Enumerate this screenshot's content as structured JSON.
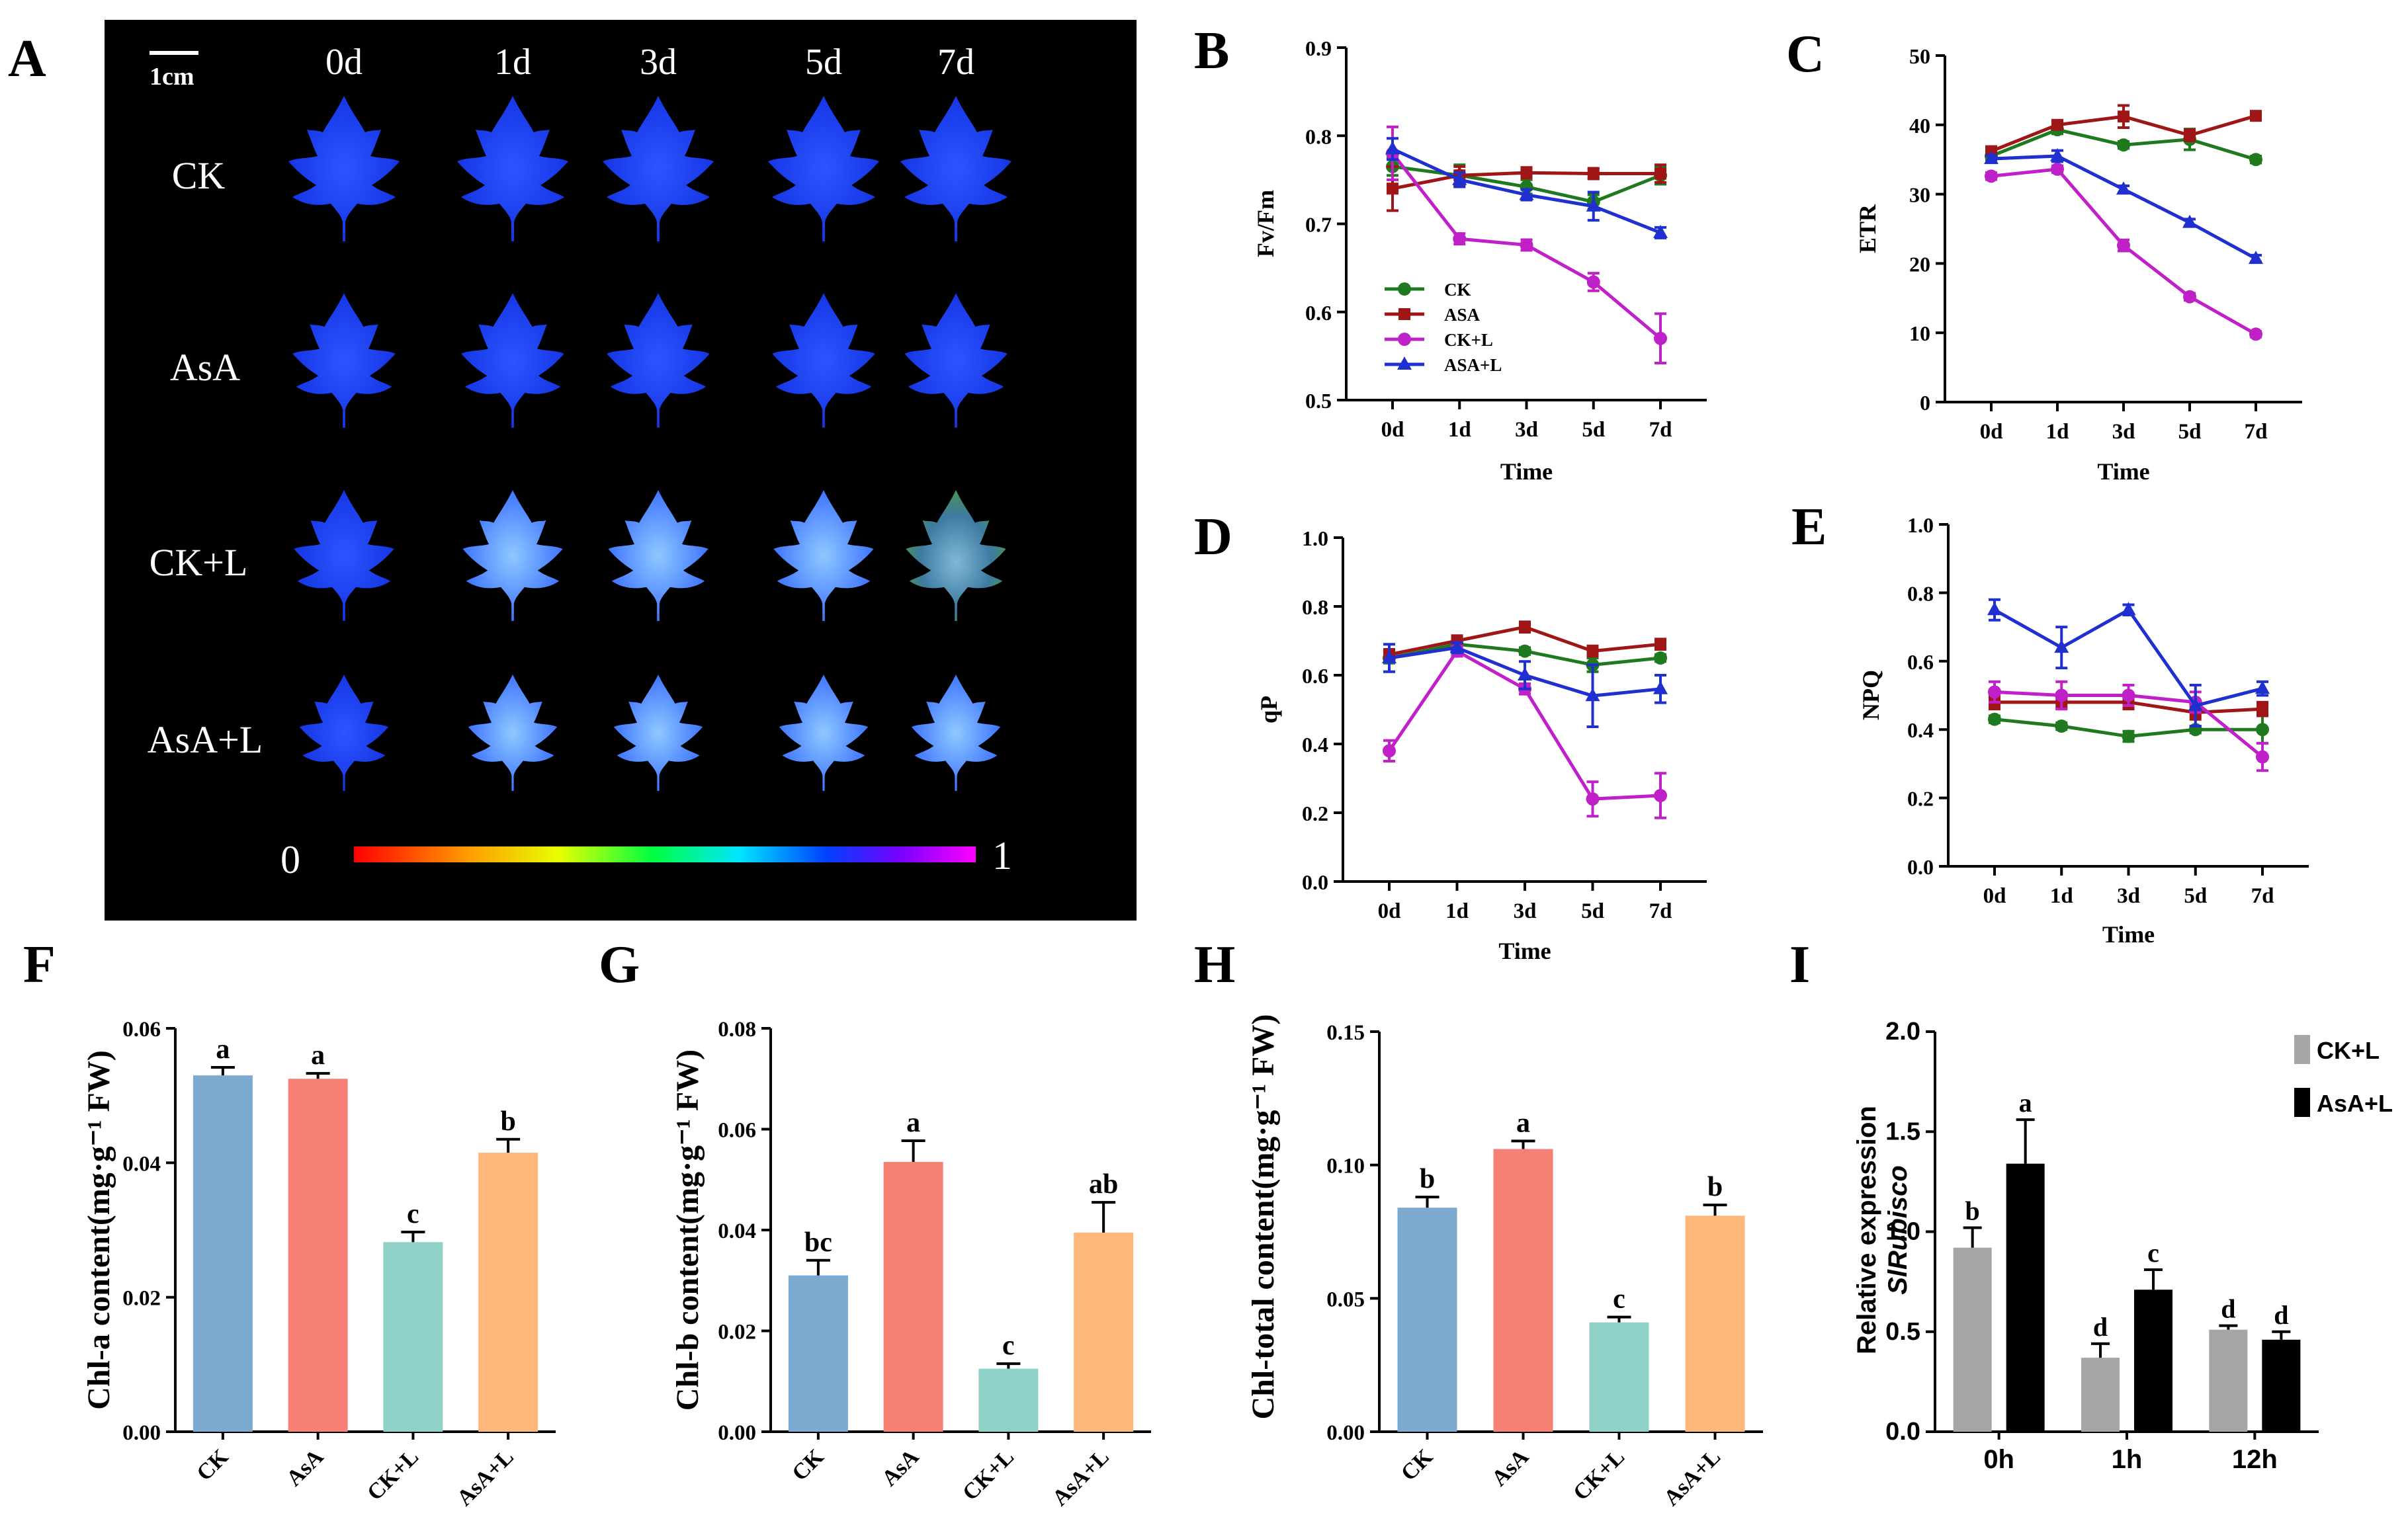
{
  "panel_labels": [
    "A",
    "B",
    "C",
    "D",
    "E",
    "F",
    "G",
    "H",
    "I"
  ],
  "photo": {
    "scale_bar": "1cm",
    "days": [
      "0d",
      "1d",
      "3d",
      "5d",
      "7d"
    ],
    "rows": [
      "CK",
      "AsA",
      "CK+L",
      "AsA+L"
    ],
    "colorbar_min": "0",
    "colorbar_max": "1",
    "colors": {
      "leaf_healthy": "#1a3cff",
      "leaf_light": "#3f86ff",
      "background": "#000000"
    }
  },
  "chart_data": [
    {
      "id": "B",
      "type": "line",
      "title": "",
      "xlabel": "Time",
      "ylabel": "Fv/Fm",
      "categories": [
        "0d",
        "1d",
        "3d",
        "5d",
        "7d"
      ],
      "ylim": [
        0.5,
        0.9
      ],
      "yticks": [
        "0.5",
        "0.6",
        "0.7",
        "0.8",
        "0.9"
      ],
      "legend_position": "lower-left",
      "series": [
        {
          "name": "CK",
          "color": "#1f7a1f",
          "marker": "circle",
          "values": [
            0.765,
            0.755,
            0.742,
            0.725,
            0.755
          ],
          "err": [
            0.01,
            0.012,
            0.008,
            0.008,
            0.01
          ]
        },
        {
          "name": "ASA",
          "color": "#a01515",
          "marker": "square",
          "values": [
            0.74,
            0.755,
            0.758,
            0.757,
            0.757
          ],
          "err": [
            0.025,
            0.01,
            0.006,
            0.006,
            0.01
          ]
        },
        {
          "name": "CK+L",
          "color": "#c020c8",
          "marker": "circle",
          "values": [
            0.78,
            0.683,
            0.676,
            0.634,
            0.57
          ],
          "err": [
            0.03,
            0.006,
            0.006,
            0.01,
            0.028
          ]
        },
        {
          "name": "ASA+L",
          "color": "#1f2fd0",
          "marker": "triangle",
          "values": [
            0.785,
            0.75,
            0.733,
            0.72,
            0.69
          ],
          "err": [
            0.012,
            0.008,
            0.006,
            0.016,
            0.006
          ]
        }
      ]
    },
    {
      "id": "C",
      "type": "line",
      "title": "",
      "xlabel": "Time",
      "ylabel": "ETR",
      "categories": [
        "0d",
        "1d",
        "3d",
        "5d",
        "7d"
      ],
      "ylim": [
        0,
        50
      ],
      "yticks": [
        "0",
        "10",
        "20",
        "30",
        "40",
        "50"
      ],
      "series": [
        {
          "name": "CK",
          "color": "#1f7a1f",
          "marker": "circle",
          "values": [
            35.5,
            39.3,
            37.1,
            37.9,
            35.0
          ],
          "err": [
            0.5,
            0.6,
            0.5,
            1.5,
            0.5
          ]
        },
        {
          "name": "ASA",
          "color": "#a01515",
          "marker": "square",
          "values": [
            36.2,
            40.0,
            41.2,
            38.5,
            41.3
          ],
          "err": [
            0.5,
            0.6,
            1.6,
            0.8,
            0.5
          ]
        },
        {
          "name": "CK+L",
          "color": "#c020c8",
          "marker": "circle",
          "values": [
            32.6,
            33.6,
            22.6,
            15.2,
            9.8
          ],
          "err": [
            0.5,
            0.5,
            0.8,
            0.5,
            0.4
          ]
        },
        {
          "name": "ASA+L",
          "color": "#1f2fd0",
          "marker": "triangle",
          "values": [
            35.1,
            35.5,
            30.7,
            25.9,
            20.7
          ],
          "err": [
            0.5,
            0.8,
            0.5,
            0.5,
            0.5
          ]
        }
      ]
    },
    {
      "id": "D",
      "type": "line",
      "title": "",
      "xlabel": "Time",
      "ylabel": "qP",
      "categories": [
        "0d",
        "1d",
        "3d",
        "5d",
        "7d"
      ],
      "ylim": [
        0,
        1.0
      ],
      "yticks": [
        "0.0",
        "0.2",
        "0.4",
        "0.6",
        "0.8",
        "1.0"
      ],
      "series": [
        {
          "name": "CK",
          "color": "#1f7a1f",
          "marker": "circle",
          "values": [
            0.65,
            0.69,
            0.67,
            0.63,
            0.65
          ],
          "err": [
            0.015,
            0.01,
            0.01,
            0.02,
            0.01
          ]
        },
        {
          "name": "ASA",
          "color": "#a01515",
          "marker": "square",
          "values": [
            0.66,
            0.7,
            0.74,
            0.67,
            0.69
          ],
          "err": [
            0.015,
            0.015,
            0.015,
            0.015,
            0.015
          ]
        },
        {
          "name": "CK+L",
          "color": "#c020c8",
          "marker": "circle",
          "values": [
            0.38,
            0.67,
            0.56,
            0.24,
            0.25
          ],
          "err": [
            0.03,
            0.015,
            0.015,
            0.05,
            0.065
          ]
        },
        {
          "name": "ASA+L",
          "color": "#1f2fd0",
          "marker": "triangle",
          "values": [
            0.65,
            0.68,
            0.6,
            0.54,
            0.56
          ],
          "err": [
            0.04,
            0.015,
            0.04,
            0.09,
            0.04
          ]
        }
      ]
    },
    {
      "id": "E",
      "type": "line",
      "title": "",
      "xlabel": "Time",
      "ylabel": "NPQ",
      "categories": [
        "0d",
        "1d",
        "3d",
        "5d",
        "7d"
      ],
      "ylim": [
        0,
        1.0
      ],
      "yticks": [
        "0.0",
        "0.2",
        "0.4",
        "0.6",
        "0.8",
        "1.0"
      ],
      "series": [
        {
          "name": "CK",
          "color": "#1f7a1f",
          "marker": "circle",
          "values": [
            0.43,
            0.41,
            0.38,
            0.4,
            0.4
          ],
          "err": [
            0.01,
            0.01,
            0.015,
            0.01,
            0.04
          ]
        },
        {
          "name": "ASA",
          "color": "#a01515",
          "marker": "square",
          "values": [
            0.48,
            0.48,
            0.48,
            0.45,
            0.46
          ],
          "err": [
            0.02,
            0.02,
            0.02,
            0.02,
            0.02
          ]
        },
        {
          "name": "CK+L",
          "color": "#c020c8",
          "marker": "circle",
          "values": [
            0.51,
            0.5,
            0.5,
            0.48,
            0.32
          ],
          "err": [
            0.03,
            0.04,
            0.03,
            0.03,
            0.04
          ]
        },
        {
          "name": "ASA+L",
          "color": "#1f2fd0",
          "marker": "triangle",
          "values": [
            0.75,
            0.64,
            0.75,
            0.47,
            0.52
          ],
          "err": [
            0.03,
            0.06,
            0.015,
            0.06,
            0.02
          ]
        }
      ]
    },
    {
      "id": "F",
      "type": "bar",
      "title": "",
      "xlabel": "",
      "ylabel": "Chl-a content(mg·g⁻¹ FW)",
      "categories": [
        "CK",
        "AsA",
        "CK+L",
        "AsA+L"
      ],
      "ylim": [
        0,
        0.06
      ],
      "yticks": [
        "0.00",
        "0.02",
        "0.04",
        "0.06"
      ],
      "values": [
        0.053,
        0.0525,
        0.0282,
        0.0415
      ],
      "err": [
        0.0012,
        0.0008,
        0.0015,
        0.002
      ],
      "letters": [
        "a",
        "a",
        "c",
        "b"
      ],
      "colors": [
        "#7ba9cf",
        "#f78074",
        "#8fd1c7",
        "#fdb77a"
      ]
    },
    {
      "id": "G",
      "type": "bar",
      "title": "",
      "xlabel": "",
      "ylabel": "Chl-b content(mg·g⁻¹ FW)",
      "categories": [
        "CK",
        "AsA",
        "CK+L",
        "AsA+L"
      ],
      "ylim": [
        0,
        0.08
      ],
      "yticks": [
        "0.00",
        "0.02",
        "0.04",
        "0.06",
        "0.08"
      ],
      "values": [
        0.031,
        0.0535,
        0.0125,
        0.0395
      ],
      "err": [
        0.003,
        0.0042,
        0.001,
        0.006
      ],
      "letters": [
        "bc",
        "a",
        "c",
        "ab"
      ],
      "colors": [
        "#7ba9cf",
        "#f78074",
        "#8fd1c7",
        "#fdb77a"
      ]
    },
    {
      "id": "H",
      "type": "bar",
      "title": "",
      "xlabel": "",
      "ylabel": "Chl-total content(mg·g⁻¹ FW)",
      "categories": [
        "CK",
        "AsA",
        "CK+L",
        "AsA+L"
      ],
      "ylim": [
        0,
        0.15
      ],
      "yticks": [
        "0.00",
        "0.05",
        "0.10",
        "0.15"
      ],
      "values": [
        0.084,
        0.106,
        0.041,
        0.081
      ],
      "err": [
        0.004,
        0.003,
        0.002,
        0.004
      ],
      "letters": [
        "b",
        "a",
        "c",
        "b"
      ],
      "colors": [
        "#7ba9cf",
        "#f78074",
        "#8fd1c7",
        "#fdb77a"
      ]
    },
    {
      "id": "I",
      "type": "bar",
      "title": "",
      "xlabel": "",
      "ylabel_line1": "Relative expression",
      "ylabel_line2": "SlRubisco",
      "categories": [
        "0h",
        "1h",
        "12h"
      ],
      "ylim": [
        0,
        2.0
      ],
      "yticks": [
        "0.0",
        "0.5",
        "1.0",
        "1.5",
        "2.0"
      ],
      "legend_position": "top-right",
      "series": [
        {
          "name": "CK+L",
          "color": "#a6a6a6",
          "values": [
            0.92,
            0.37,
            0.51
          ],
          "err": [
            0.1,
            0.07,
            0.02
          ],
          "letters": [
            "b",
            "d",
            "d"
          ]
        },
        {
          "name": "AsA+L",
          "color": "#000000",
          "values": [
            1.34,
            0.71,
            0.46
          ],
          "err": [
            0.22,
            0.1,
            0.04
          ],
          "letters": [
            "a",
            "c",
            "d"
          ]
        }
      ]
    }
  ]
}
